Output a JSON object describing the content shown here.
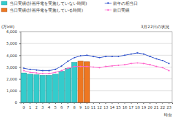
{
  "chart_data": {
    "type": "bar",
    "title": "3月22日の状況",
    "y_label": "(万kW)",
    "x_label": "時台",
    "categories": [
      "0",
      "1",
      "2",
      "3",
      "4",
      "5",
      "6",
      "7",
      "8",
      "9",
      "10",
      "11",
      "12",
      "13",
      "14",
      "15",
      "16",
      "17",
      "18",
      "19",
      "20",
      "21",
      "22",
      "23"
    ],
    "series": [
      {
        "name": "当日実績(計画停電を実施していない時間)",
        "type": "bar",
        "color": "#33cccc",
        "values": [
          2500,
          2400,
          2350,
          2300,
          2300,
          2400,
          2650,
          2900,
          3400,
          null,
          null,
          null,
          null,
          null,
          null,
          null,
          null,
          null,
          null,
          null,
          null,
          null,
          null,
          null
        ]
      },
      {
        "name": "当日実績(計画停電を実施している時間)",
        "type": "bar",
        "color": "#ee7722",
        "values": [
          null,
          null,
          null,
          null,
          null,
          null,
          null,
          null,
          null,
          3500,
          3450,
          null,
          null,
          null,
          null,
          null,
          null,
          null,
          null,
          null,
          null,
          null,
          null,
          null
        ]
      },
      {
        "name": "前年の相当日",
        "type": "line",
        "color": "#3355cc",
        "marker": "circle",
        "values": [
          2900,
          2800,
          2750,
          2700,
          2700,
          2800,
          3100,
          3500,
          3800,
          3950,
          4000,
          3900,
          3800,
          3900,
          3900,
          3900,
          4000,
          4100,
          4200,
          4100,
          3900,
          3700,
          3550,
          3300
        ]
      },
      {
        "name": "前日実績",
        "type": "line",
        "color": "#ff66cc",
        "marker": "circle",
        "values": [
          2700,
          2550,
          2500,
          2450,
          2450,
          2550,
          2700,
          2900,
          3050,
          3050,
          3050,
          3000,
          2950,
          3050,
          3100,
          3150,
          3200,
          3300,
          3350,
          3300,
          3200,
          3050,
          2950,
          2700
        ]
      }
    ],
    "ylim": [
      0,
      6000
    ],
    "yticks": [
      0,
      {
        "value": 1000,
        "label": "1,000"
      },
      {
        "value": 2000,
        "label": "2,000"
      },
      {
        "value": 3000,
        "label": "3,000"
      },
      {
        "value": 4000,
        "label": "4,000"
      },
      {
        "value": 5000,
        "label": "5,000"
      },
      {
        "value": 6000,
        "label": "6,000"
      }
    ],
    "grid": true,
    "legend": "top"
  }
}
